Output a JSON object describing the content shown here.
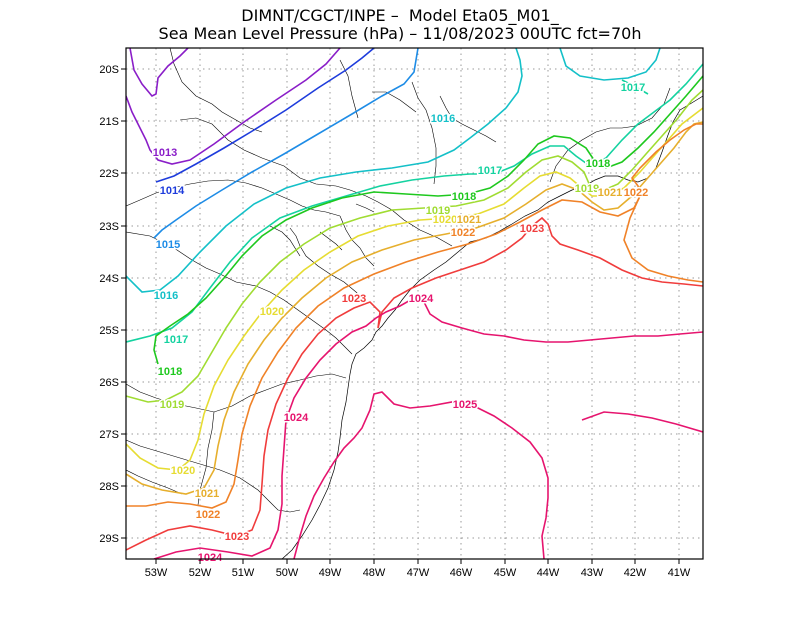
{
  "title_line1": "DIMNT/CGCT/INPE –  Model Eta05_M01_",
  "title_line2": "Sea Mean Level Pressure (hPa) – 11/08/2023 00UTC fct=70h",
  "lon_ticks": [
    "53W",
    "52W",
    "51W",
    "50W",
    "49W",
    "48W",
    "47W",
    "46W",
    "45W",
    "44W",
    "43W",
    "42W",
    "41W"
  ],
  "lat_ticks": [
    "20S",
    "21S",
    "22S",
    "23S",
    "24S",
    "25S",
    "26S",
    "27S",
    "28S",
    "29S"
  ],
  "isobars": [
    {
      "value": 1013,
      "label": "1013",
      "color": "#8a1ec8"
    },
    {
      "value": 1014,
      "label": "1014",
      "color": "#1e3cdc"
    },
    {
      "value": 1015,
      "label": "1015",
      "color": "#1e8ce6"
    },
    {
      "value": 1016,
      "label": "1016",
      "color": "#14c0c8"
    },
    {
      "value": 1017,
      "label": "1017",
      "color": "#14d2a0"
    },
    {
      "value": 1018,
      "label": "1018",
      "color": "#1ec81e"
    },
    {
      "value": 1019,
      "label": "1019",
      "color": "#a0dc32"
    },
    {
      "value": 1020,
      "label": "1020",
      "color": "#e6dc32"
    },
    {
      "value": 1021,
      "label": "1021",
      "color": "#e6af2d"
    },
    {
      "value": 1022,
      "label": "1022",
      "color": "#f08228"
    },
    {
      "value": 1023,
      "label": "1023",
      "color": "#f03c3c"
    },
    {
      "value": 1024,
      "label": "1024",
      "color": "#e6146e"
    },
    {
      "value": 1025,
      "label": "1025",
      "color": "#e6146e"
    }
  ]
}
